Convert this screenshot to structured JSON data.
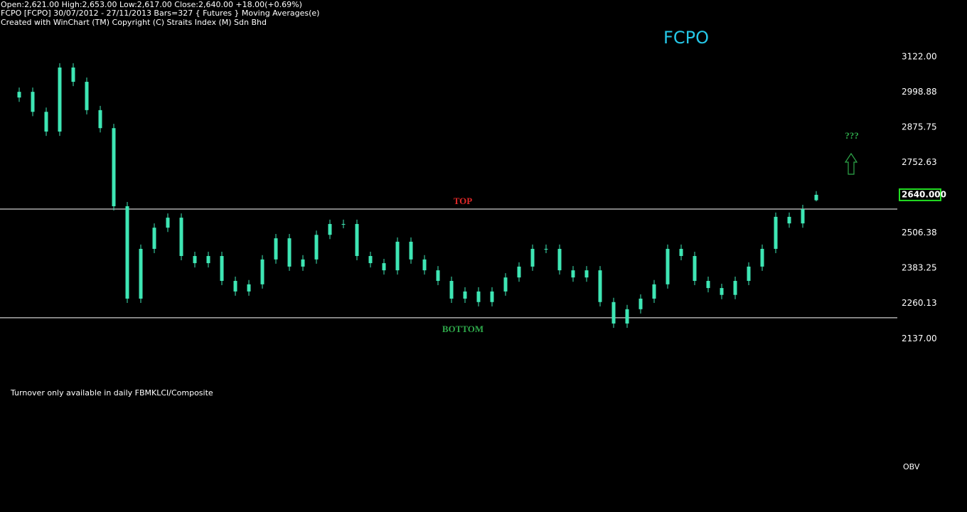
{
  "header": {
    "line1": "Open:2,621.00  High:2,653.00  Low:2,617.00  Close:2,640.00  +18.00(+0.69%)",
    "line2": "FCPO [FCPO]  30/07/2012 - 27/11/2013  Bars=327  { Futures } Moving Averages(e)",
    "line3": "Created with WinChart (TM)  Copyright (C) Straits Index (M) Sdn Bhd"
  },
  "chart_data": {
    "type": "candlestick",
    "title": "FCPO",
    "color": "#3ee6b4",
    "open": [
      2980,
      3000,
      2930,
      2861,
      3085,
      3035,
      2936,
      2873,
      2600,
      2277,
      2451,
      2525,
      2560,
      2426,
      2401,
      2426,
      2339,
      2302,
      2327,
      2414,
      2488,
      2389,
      2414,
      2500,
      2538,
      2538,
      2426,
      2401,
      2376,
      2476,
      2414,
      2376,
      2339,
      2277,
      2302,
      2265,
      2302,
      2351,
      2389,
      2451,
      2451,
      2376,
      2351,
      2376,
      2265,
      2190,
      2240,
      2277,
      2327,
      2451,
      2426,
      2339,
      2314,
      2290,
      2339,
      2389,
      2451,
      2563,
      2540,
      2621
    ],
    "high": [
      3015,
      3015,
      2945,
      3100,
      3100,
      3050,
      2951,
      2888,
      2615,
      2466,
      2540,
      2575,
      2575,
      2441,
      2441,
      2441,
      2354,
      2342,
      2429,
      2503,
      2503,
      2429,
      2515,
      2553,
      2553,
      2553,
      2441,
      2416,
      2491,
      2491,
      2429,
      2391,
      2354,
      2317,
      2317,
      2317,
      2366,
      2404,
      2466,
      2466,
      2466,
      2391,
      2391,
      2391,
      2280,
      2255,
      2292,
      2342,
      2466,
      2466,
      2441,
      2354,
      2329,
      2354,
      2404,
      2466,
      2578,
      2578,
      2605,
      2653
    ],
    "low": [
      2965,
      2915,
      2846,
      2846,
      3020,
      2921,
      2858,
      2585,
      2262,
      2262,
      2436,
      2510,
      2411,
      2386,
      2386,
      2324,
      2287,
      2287,
      2312,
      2399,
      2374,
      2374,
      2399,
      2485,
      2523,
      2411,
      2386,
      2361,
      2361,
      2399,
      2361,
      2324,
      2262,
      2262,
      2250,
      2250,
      2287,
      2336,
      2374,
      2436,
      2361,
      2336,
      2336,
      2250,
      2175,
      2175,
      2225,
      2262,
      2312,
      2411,
      2324,
      2299,
      2275,
      2275,
      2324,
      2374,
      2436,
      2525,
      2525,
      2617
    ],
    "close": [
      3000,
      2930,
      2861,
      3085,
      3035,
      2936,
      2873,
      2600,
      2277,
      2451,
      2525,
      2560,
      2426,
      2401,
      2426,
      2339,
      2302,
      2327,
      2414,
      2488,
      2389,
      2414,
      2500,
      2538,
      2538,
      2426,
      2401,
      2376,
      2476,
      2414,
      2376,
      2339,
      2277,
      2302,
      2265,
      2302,
      2351,
      2389,
      2451,
      2451,
      2376,
      2351,
      2376,
      2265,
      2190,
      2240,
      2277,
      2327,
      2451,
      2426,
      2339,
      2314,
      2290,
      2339,
      2389,
      2451,
      2563,
      2540,
      2590,
      2640
    ],
    "ylim": [
      2078,
      3321
    ],
    "yticks": [
      {
        "value": 3122,
        "label": "3122.00"
      },
      {
        "value": 2998.88,
        "label": "2998.88"
      },
      {
        "value": 2875.75,
        "label": "2875.75"
      },
      {
        "value": 2752.63,
        "label": "2752.63"
      },
      {
        "value": 2506.38,
        "label": "2506.38"
      },
      {
        "value": 2383.25,
        "label": "2383.25"
      },
      {
        "value": 2260.13,
        "label": "2260.13"
      },
      {
        "value": 2137,
        "label": "2137.00"
      }
    ],
    "last_price": {
      "value": 2640,
      "label": "2640.000"
    },
    "hlines": [
      {
        "value": 2590,
        "label": "TOP",
        "color": "#e02828"
      },
      {
        "value": 2210,
        "label": "BOTTOM",
        "color": "#2ea84a"
      }
    ],
    "annotation": "???"
  },
  "footer": {
    "note": "Turnover only available in daily FBMKLCI/Composite",
    "panel": "OBV"
  }
}
